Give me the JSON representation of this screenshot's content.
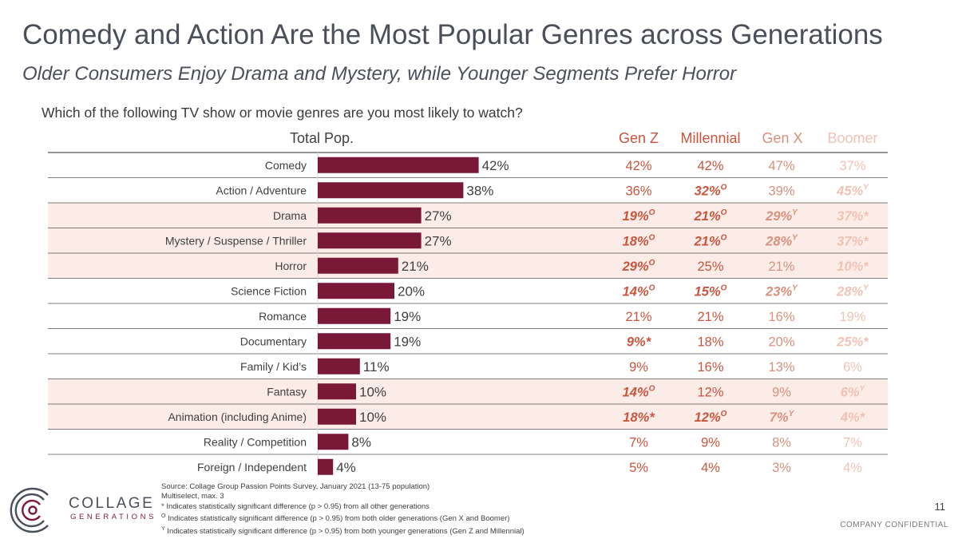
{
  "title": "Comedy and Action Are the Most Popular Genres across Generations",
  "subtitle": "Older Consumers Enjoy Drama and Mystery, while Younger Segments Prefer Horror",
  "question": "Which of the following TV show or movie genres are you most likely to watch?",
  "colors": {
    "bar": "#7a1838",
    "highlight_row": "#fbece8",
    "gen_z": "#c8553d",
    "millennial": "#c8553d",
    "gen_x": "#d9907c",
    "boomer": "#f0c2b4"
  },
  "chart_data": {
    "type": "bar",
    "total_header": "Total Pop.",
    "categories": [
      "Comedy",
      "Action / Adventure",
      "Drama",
      "Mystery / Suspense / Thriller",
      "Horror",
      "Science Fiction",
      "Romance",
      "Documentary",
      "Family / Kid’s",
      "Fantasy",
      "Animation (including Anime)",
      "Reality / Competition",
      "Foreign / Independent"
    ],
    "values": [
      42,
      38,
      27,
      27,
      21,
      20,
      19,
      19,
      11,
      10,
      10,
      8,
      4
    ],
    "highlighted_rows": [
      2,
      3,
      4,
      9,
      10
    ],
    "generations": [
      {
        "name": "Gen Z",
        "cells": [
          {
            "v": "42%",
            "s": "",
            "b": false
          },
          {
            "v": "36%",
            "s": "",
            "b": false
          },
          {
            "v": "19%",
            "s": "O",
            "b": true
          },
          {
            "v": "18%",
            "s": "O",
            "b": true
          },
          {
            "v": "29%",
            "s": "O",
            "b": true
          },
          {
            "v": "14%",
            "s": "O",
            "b": true
          },
          {
            "v": "21%",
            "s": "",
            "b": false
          },
          {
            "v": "9%*",
            "s": "",
            "b": true
          },
          {
            "v": "9%",
            "s": "",
            "b": false
          },
          {
            "v": "14%",
            "s": "O",
            "b": true
          },
          {
            "v": "18%*",
            "s": "",
            "b": true
          },
          {
            "v": "7%",
            "s": "",
            "b": false
          },
          {
            "v": "5%",
            "s": "",
            "b": false
          }
        ]
      },
      {
        "name": "Millennial",
        "cells": [
          {
            "v": "42%",
            "s": "",
            "b": false
          },
          {
            "v": "32%",
            "s": "O",
            "b": true
          },
          {
            "v": "21%",
            "s": "O",
            "b": true
          },
          {
            "v": "21%",
            "s": "O",
            "b": true
          },
          {
            "v": "25%",
            "s": "",
            "b": false
          },
          {
            "v": "15%",
            "s": "O",
            "b": true
          },
          {
            "v": "21%",
            "s": "",
            "b": false
          },
          {
            "v": "18%",
            "s": "",
            "b": false
          },
          {
            "v": "16%",
            "s": "",
            "b": false
          },
          {
            "v": "12%",
            "s": "",
            "b": false
          },
          {
            "v": "12%",
            "s": "O",
            "b": true
          },
          {
            "v": "9%",
            "s": "",
            "b": false
          },
          {
            "v": "4%",
            "s": "",
            "b": false
          }
        ]
      },
      {
        "name": "Gen X",
        "cells": [
          {
            "v": "47%",
            "s": "",
            "b": false
          },
          {
            "v": "39%",
            "s": "",
            "b": false
          },
          {
            "v": "29%",
            "s": "Y",
            "b": true
          },
          {
            "v": "28%",
            "s": "Y",
            "b": true
          },
          {
            "v": "21%",
            "s": "",
            "b": false
          },
          {
            "v": "23%",
            "s": "Y",
            "b": true
          },
          {
            "v": "16%",
            "s": "",
            "b": false
          },
          {
            "v": "20%",
            "s": "",
            "b": false
          },
          {
            "v": "13%",
            "s": "",
            "b": false
          },
          {
            "v": "9%",
            "s": "",
            "b": false
          },
          {
            "v": "7%",
            "s": "Y",
            "b": true
          },
          {
            "v": "8%",
            "s": "",
            "b": false
          },
          {
            "v": "3%",
            "s": "",
            "b": false
          }
        ]
      },
      {
        "name": "Boomer",
        "cells": [
          {
            "v": "37%",
            "s": "",
            "b": false
          },
          {
            "v": "45%",
            "s": "Y",
            "b": true
          },
          {
            "v": "37%*",
            "s": "",
            "b": true
          },
          {
            "v": "37%*",
            "s": "",
            "b": true
          },
          {
            "v": "10%*",
            "s": "",
            "b": true
          },
          {
            "v": "28%",
            "s": "Y",
            "b": true
          },
          {
            "v": "19%",
            "s": "",
            "b": false
          },
          {
            "v": "25%*",
            "s": "",
            "b": true
          },
          {
            "v": "6%",
            "s": "",
            "b": false
          },
          {
            "v": "6%",
            "s": "Y",
            "b": true
          },
          {
            "v": "4%*",
            "s": "",
            "b": true
          },
          {
            "v": "7%",
            "s": "",
            "b": false
          },
          {
            "v": "4%",
            "s": "",
            "b": false
          }
        ]
      }
    ]
  },
  "footnotes": {
    "source": "Source: Collage Group Passion Points Survey, January 2021 (13-75 population)",
    "multiselect": "Multiselect, max. 3",
    "star": "* Indicates statistically significant difference (p > 0.95) from all other generations",
    "o_mark": "O",
    "o_text": " Indicates statistically significant difference (p > 0.95) from both older generations (Gen X and Boomer)",
    "y_mark": "Y",
    "y_text": " Indicates statistically significant difference (p > 0.95) from both younger generations (Gen Z and Millennial)"
  },
  "logo": {
    "line1": "COLLAGE",
    "line2": "GENERATIONS"
  },
  "page_number": "11",
  "confidential": "COMPANY CONFIDENTIAL"
}
